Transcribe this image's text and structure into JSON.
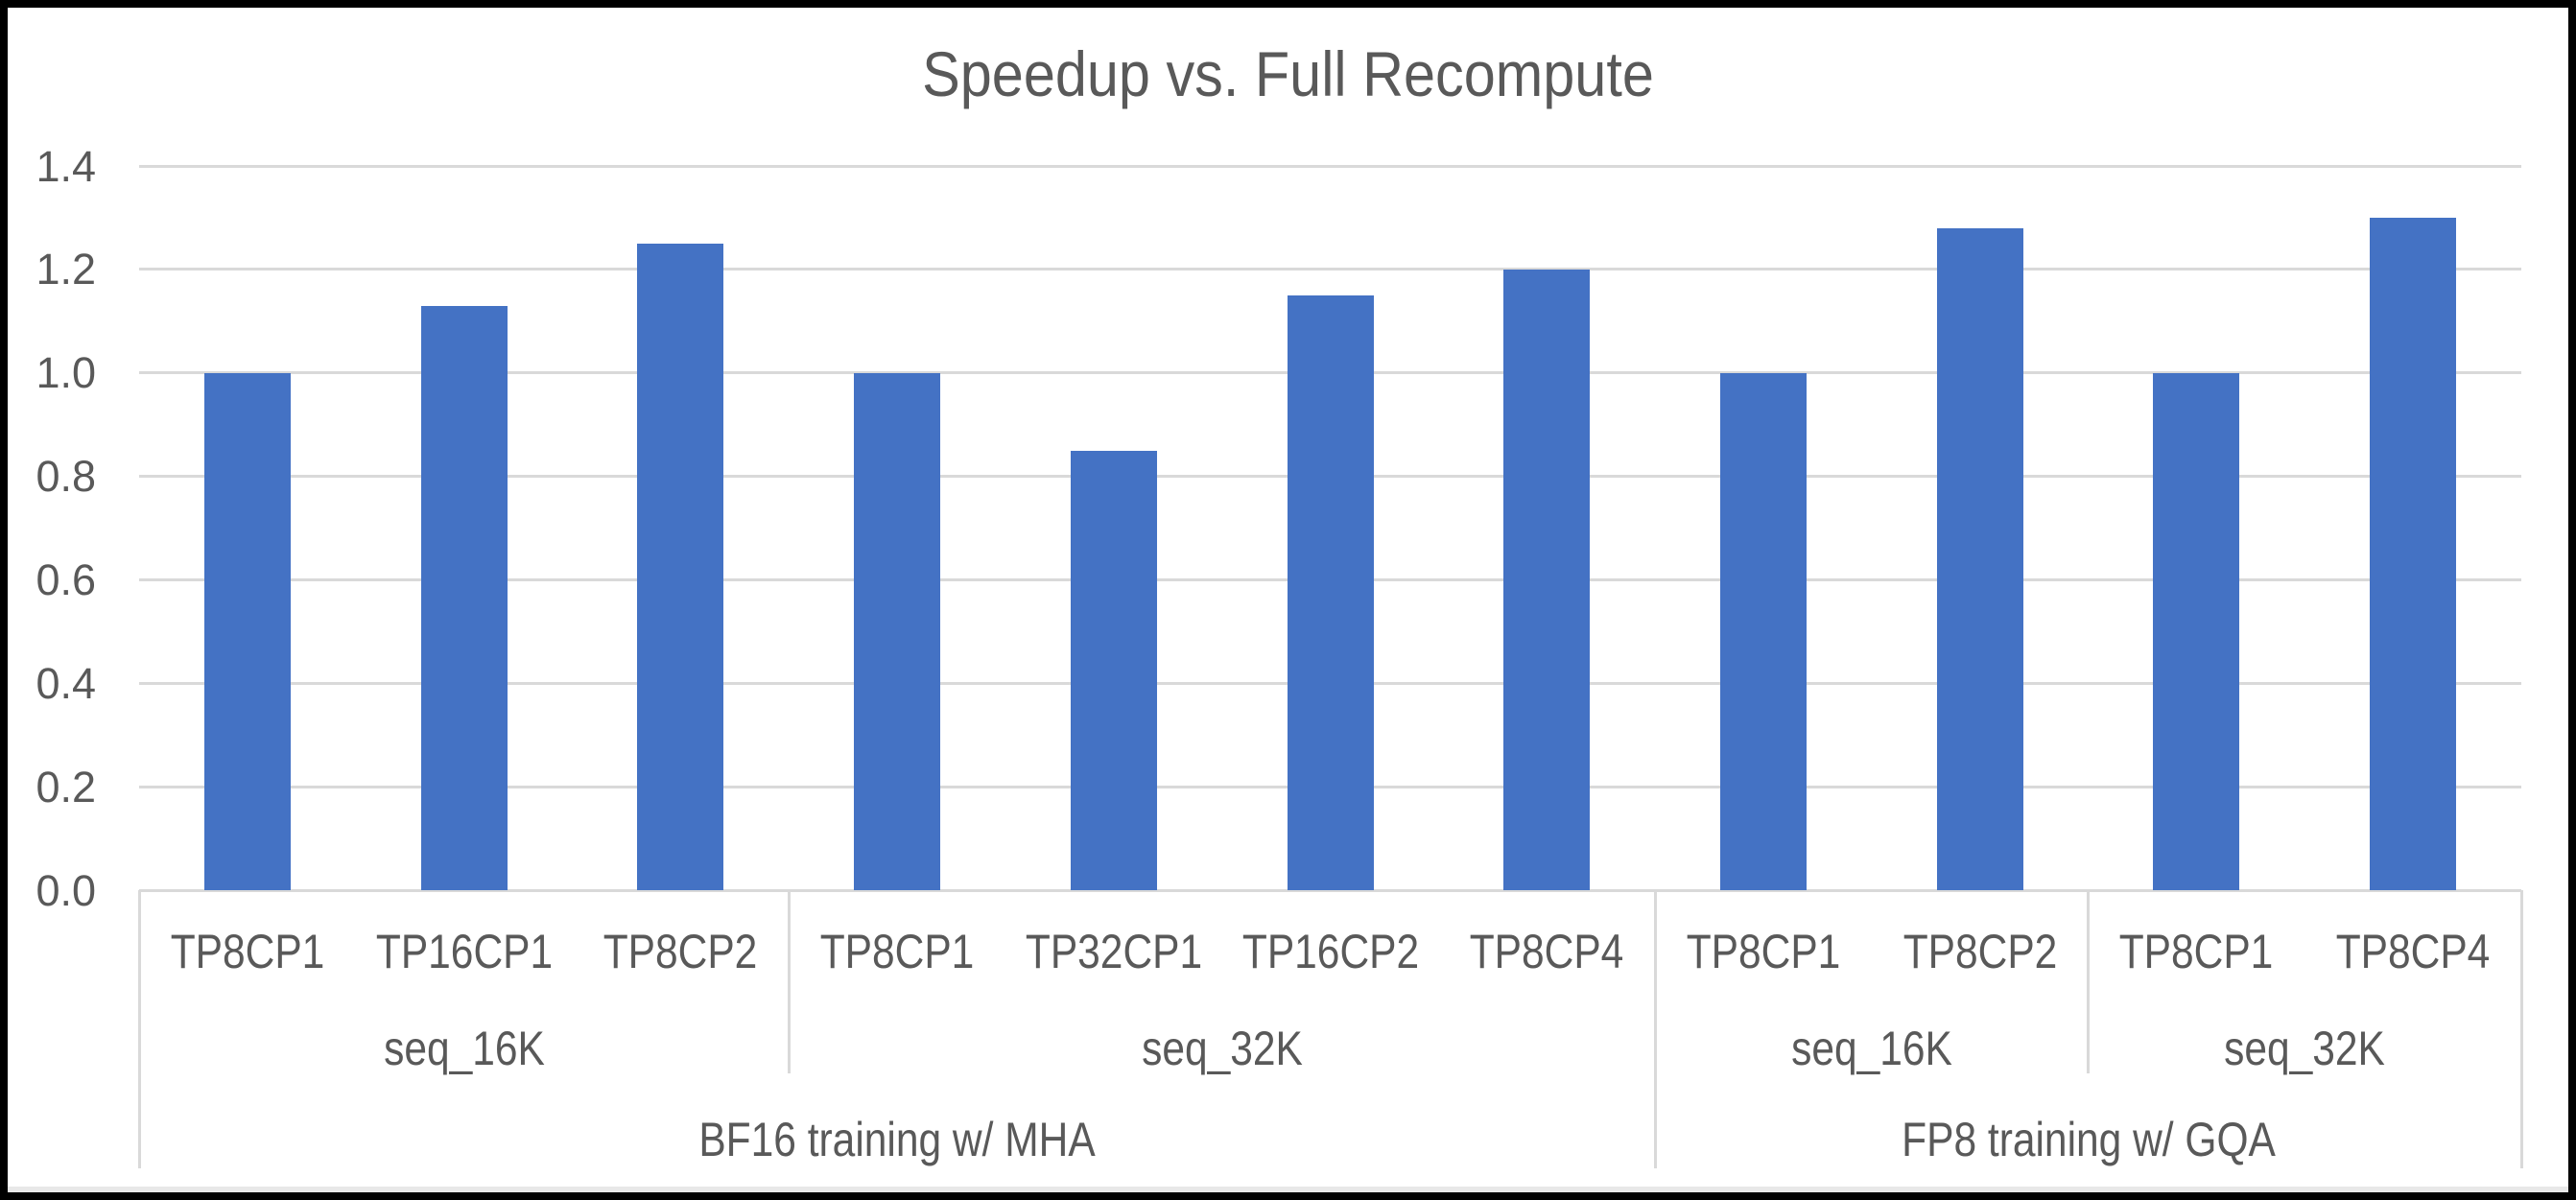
{
  "chart_data": {
    "type": "bar",
    "title": "Speedup vs. Full Recompute",
    "categories": [
      "TP8CP1",
      "TP16CP1",
      "TP8CP2",
      "TP8CP1",
      "TP32CP1",
      "TP16CP2",
      "TP8CP4",
      "TP8CP1",
      "TP8CP2",
      "TP8CP1",
      "TP8CP4"
    ],
    "values": [
      1.0,
      1.13,
      1.25,
      1.0,
      0.85,
      1.15,
      1.2,
      1.0,
      1.28,
      1.0,
      1.3
    ],
    "seq_groups": [
      {
        "label": "seq_16K",
        "span": [
          0,
          3
        ]
      },
      {
        "label": "seq_32K",
        "span": [
          3,
          7
        ]
      },
      {
        "label": "seq_16K",
        "span": [
          7,
          9
        ]
      },
      {
        "label": "seq_32K",
        "span": [
          9,
          11
        ]
      }
    ],
    "training_groups": [
      {
        "label": "BF16 training w/ MHA",
        "span": [
          0,
          7
        ]
      },
      {
        "label": "FP8 training w/ GQA",
        "span": [
          7,
          11
        ]
      }
    ],
    "yticks": [
      "1.4",
      "1.2",
      "1.0",
      "0.8",
      "0.6",
      "0.4",
      "0.2",
      "0.0"
    ],
    "ylim": [
      0,
      1.4
    ],
    "grid": true,
    "legend": false,
    "xlabel": "",
    "ylabel": "",
    "bar_color": "#4472C4",
    "grid_color": "#D9D9D9",
    "text_color": "#595959"
  }
}
